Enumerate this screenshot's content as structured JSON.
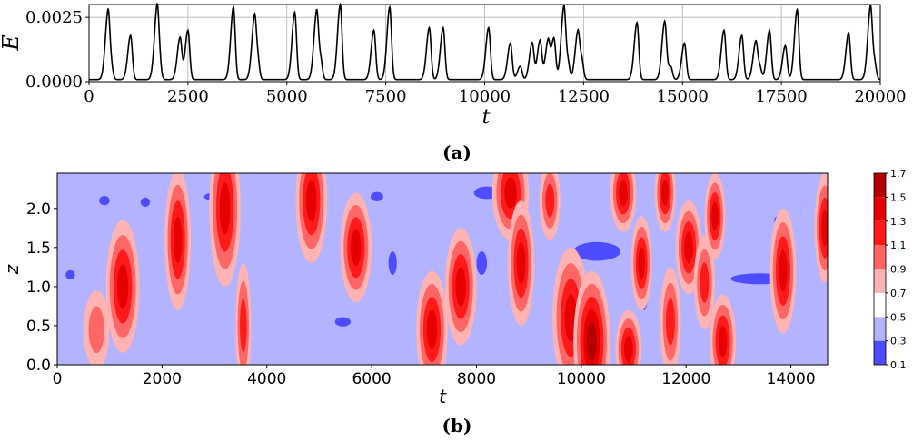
{
  "panel_a": {
    "caption": "(a)",
    "chart_data": {
      "type": "line",
      "ylabel": "E",
      "xlabel": "t",
      "xlim": [
        0,
        20000
      ],
      "ylim": [
        0,
        0.003
      ],
      "xticks": [
        0,
        2500,
        5000,
        7500,
        10000,
        12500,
        15000,
        17500,
        20000
      ],
      "xtick_labels": [
        "0",
        "2500",
        "5000",
        "7500",
        "10000",
        "12500",
        "15000",
        "17500",
        "20000"
      ],
      "yticks": [
        0,
        0.0025
      ],
      "ytick_labels": [
        "0.0000",
        "0.0025"
      ],
      "grid": true,
      "baseline": 8e-05,
      "peaks": [
        {
          "t": 480,
          "e": 0.00255
        },
        {
          "t": 560,
          "e": 0.0006
        },
        {
          "t": 1050,
          "e": 0.0018
        },
        {
          "t": 1720,
          "e": 0.0026
        },
        {
          "t": 1780,
          "e": 0.0007
        },
        {
          "t": 2300,
          "e": 0.0017
        },
        {
          "t": 2500,
          "e": 0.002
        },
        {
          "t": 3650,
          "e": 0.0029
        },
        {
          "t": 4180,
          "e": 0.0022
        },
        {
          "t": 4260,
          "e": 0.0009
        },
        {
          "t": 5200,
          "e": 0.0027
        },
        {
          "t": 5750,
          "e": 0.0025
        },
        {
          "t": 5850,
          "e": 0.0009
        },
        {
          "t": 6350,
          "e": 0.003
        },
        {
          "t": 7200,
          "e": 0.002
        },
        {
          "t": 7600,
          "e": 0.0029
        },
        {
          "t": 8600,
          "e": 0.0021
        },
        {
          "t": 8950,
          "e": 0.0021
        },
        {
          "t": 10100,
          "e": 0.0021
        },
        {
          "t": 10650,
          "e": 0.0015
        },
        {
          "t": 10900,
          "e": 0.0006
        },
        {
          "t": 11200,
          "e": 0.0015
        },
        {
          "t": 11400,
          "e": 0.0016
        },
        {
          "t": 11600,
          "e": 0.0015
        },
        {
          "t": 11750,
          "e": 0.0017
        },
        {
          "t": 12000,
          "e": 0.0027
        },
        {
          "t": 12100,
          "e": 0.0008
        },
        {
          "t": 12350,
          "e": 0.0017
        },
        {
          "t": 12450,
          "e": 0.0009
        },
        {
          "t": 13850,
          "e": 0.0023
        },
        {
          "t": 14550,
          "e": 0.0023
        },
        {
          "t": 14700,
          "e": 0.0006
        },
        {
          "t": 15050,
          "e": 0.0015
        },
        {
          "t": 16050,
          "e": 0.002
        },
        {
          "t": 16500,
          "e": 0.0018
        },
        {
          "t": 16850,
          "e": 0.0014
        },
        {
          "t": 16950,
          "e": 0.0006
        },
        {
          "t": 17200,
          "e": 0.002
        },
        {
          "t": 17600,
          "e": 0.0014
        },
        {
          "t": 17900,
          "e": 0.0028
        },
        {
          "t": 19200,
          "e": 0.0019
        },
        {
          "t": 19750,
          "e": 0.0027
        },
        {
          "t": 19850,
          "e": 0.0008
        }
      ]
    }
  },
  "panel_b": {
    "caption": "(b)",
    "chart_data": {
      "type": "heatmap",
      "xlabel": "t",
      "ylabel": "z",
      "xlim": [
        0,
        14700
      ],
      "ylim": [
        0,
        2.45
      ],
      "xticks": [
        0,
        2000,
        4000,
        6000,
        8000,
        10000,
        12000,
        14000
      ],
      "xtick_labels": [
        "0",
        "2000",
        "4000",
        "6000",
        "8000",
        "10000",
        "12000",
        "14000"
      ],
      "yticks": [
        0,
        0.5,
        1.0,
        1.5,
        2.0
      ],
      "ytick_labels": [
        "0.0",
        "0.5",
        "1.0",
        "1.5",
        "2.0"
      ],
      "colorbar_ticks": [
        "0.1",
        "0.3",
        "0.5",
        "0.7",
        "0.9",
        "1.1",
        "1.3",
        "1.5",
        "1.7"
      ],
      "colorbar_levels": [
        0.1,
        0.3,
        0.5,
        0.7,
        0.9,
        1.1,
        1.3,
        1.5,
        1.7
      ],
      "colorbar_colors": [
        "#0000cc",
        "#4d4dff",
        "#b3b3ff",
        "#ffffff",
        "#ffb3b3",
        "#ff6666",
        "#ff1a1a",
        "#e60000",
        "#b30000",
        "#800000"
      ],
      "background_level": 0.45,
      "low_regions": [
        {
          "t": 700,
          "z": 2.1,
          "dt": 700,
          "dz": 0.6,
          "v": 0.38
        },
        {
          "t": 3300,
          "z": 0.9,
          "dt": 900,
          "dz": 0.9,
          "v": 0.38
        },
        {
          "t": 4100,
          "z": 1.9,
          "dt": 900,
          "dz": 0.5,
          "v": 0.37
        },
        {
          "t": 5200,
          "z": 2.0,
          "dt": 1000,
          "dz": 0.6,
          "v": 0.38
        },
        {
          "t": 7100,
          "z": 1.3,
          "dt": 900,
          "dz": 0.8,
          "v": 0.38
        },
        {
          "t": 8500,
          "z": 2.1,
          "dt": 700,
          "dz": 0.5,
          "v": 0.38
        },
        {
          "t": 9500,
          "z": 1.5,
          "dt": 900,
          "dz": 0.9,
          "v": 0.37
        },
        {
          "t": 10300,
          "z": 0.6,
          "dt": 800,
          "dz": 0.6,
          "v": 0.38
        },
        {
          "t": 12800,
          "z": 1.6,
          "dt": 1000,
          "dz": 0.8,
          "v": 0.38
        },
        {
          "t": 13300,
          "z": 0.6,
          "dt": 900,
          "dz": 0.6,
          "v": 0.38
        },
        {
          "t": 2100,
          "z": 0.2,
          "dt": 500,
          "dz": 0.5,
          "v": 0.38
        },
        {
          "t": 6800,
          "z": 0.2,
          "dt": 800,
          "dz": 0.4,
          "v": 0.37
        }
      ],
      "deep_low": [
        {
          "t": 900,
          "z": 2.1,
          "dt": 100,
          "dz": 0.06,
          "v": 0.2
        },
        {
          "t": 250,
          "z": 1.15,
          "dt": 90,
          "dz": 0.06,
          "v": 0.2
        },
        {
          "t": 1680,
          "z": 2.08,
          "dt": 90,
          "dz": 0.06,
          "v": 0.2
        },
        {
          "t": 3100,
          "z": 2.15,
          "dt": 300,
          "dz": 0.06,
          "v": 0.2
        },
        {
          "t": 5450,
          "z": 0.55,
          "dt": 150,
          "dz": 0.06,
          "v": 0.2
        },
        {
          "t": 6100,
          "z": 2.15,
          "dt": 120,
          "dz": 0.06,
          "v": 0.2
        },
        {
          "t": 6400,
          "z": 1.3,
          "dt": 80,
          "dz": 0.15,
          "v": 0.2
        },
        {
          "t": 8200,
          "z": 2.2,
          "dt": 250,
          "dz": 0.08,
          "v": 0.2
        },
        {
          "t": 10300,
          "z": 1.45,
          "dt": 450,
          "dz": 0.12,
          "v": 0.2
        },
        {
          "t": 11200,
          "z": 1.0,
          "dt": 80,
          "dz": 0.3,
          "v": 0.2
        },
        {
          "t": 13400,
          "z": 1.1,
          "dt": 550,
          "dz": 0.07,
          "v": 0.2
        },
        {
          "t": 13800,
          "z": 1.85,
          "dt": 120,
          "dz": 0.06,
          "v": 0.2
        },
        {
          "t": 9700,
          "z": 0.55,
          "dt": 200,
          "dz": 0.08,
          "v": 0.2
        },
        {
          "t": 8100,
          "z": 1.3,
          "dt": 100,
          "dz": 0.15,
          "v": 0.2
        }
      ],
      "hot_regions": [
        {
          "t": 1250,
          "z": 1.0,
          "dt": 320,
          "dz": 0.85,
          "v": 1.45
        },
        {
          "t": 2300,
          "z": 1.6,
          "dt": 250,
          "dz": 0.9,
          "v": 1.35
        },
        {
          "t": 3200,
          "z": 2.0,
          "dt": 300,
          "dz": 1.0,
          "v": 1.45
        },
        {
          "t": 3550,
          "z": 0.5,
          "dt": 150,
          "dz": 0.8,
          "v": 1.2
        },
        {
          "t": 4850,
          "z": 2.1,
          "dt": 300,
          "dz": 0.8,
          "v": 1.3
        },
        {
          "t": 5700,
          "z": 1.5,
          "dt": 300,
          "dz": 0.7,
          "v": 1.45
        },
        {
          "t": 7150,
          "z": 0.45,
          "dt": 300,
          "dz": 0.75,
          "v": 1.4
        },
        {
          "t": 7700,
          "z": 1.0,
          "dt": 300,
          "dz": 0.75,
          "v": 1.45
        },
        {
          "t": 8650,
          "z": 2.2,
          "dt": 350,
          "dz": 0.6,
          "v": 1.4
        },
        {
          "t": 9800,
          "z": 0.6,
          "dt": 350,
          "dz": 0.9,
          "v": 1.45
        },
        {
          "t": 10200,
          "z": 0.3,
          "dt": 350,
          "dz": 0.9,
          "v": 1.55
        },
        {
          "t": 10800,
          "z": 2.2,
          "dt": 250,
          "dz": 0.5,
          "v": 1.4
        },
        {
          "t": 10900,
          "z": 0.2,
          "dt": 250,
          "dz": 0.5,
          "v": 1.3
        },
        {
          "t": 11150,
          "z": 1.3,
          "dt": 200,
          "dz": 0.6,
          "v": 1.3
        },
        {
          "t": 11600,
          "z": 2.2,
          "dt": 200,
          "dz": 0.5,
          "v": 1.3
        },
        {
          "t": 11700,
          "z": 0.55,
          "dt": 200,
          "dz": 0.7,
          "v": 1.2
        },
        {
          "t": 12050,
          "z": 1.5,
          "dt": 250,
          "dz": 0.6,
          "v": 1.3
        },
        {
          "t": 12350,
          "z": 1.05,
          "dt": 200,
          "dz": 0.6,
          "v": 1.25
        },
        {
          "t": 12550,
          "z": 1.9,
          "dt": 200,
          "dz": 0.55,
          "v": 1.3
        },
        {
          "t": 12700,
          "z": 0.3,
          "dt": 250,
          "dz": 0.6,
          "v": 1.35
        },
        {
          "t": 13850,
          "z": 1.2,
          "dt": 250,
          "dz": 0.8,
          "v": 1.4
        },
        {
          "t": 14650,
          "z": 1.75,
          "dt": 200,
          "dz": 0.7,
          "v": 1.45
        },
        {
          "t": 8850,
          "z": 1.3,
          "dt": 250,
          "dz": 0.8,
          "v": 1.35
        },
        {
          "t": 9400,
          "z": 2.1,
          "dt": 200,
          "dz": 0.5,
          "v": 1.1
        },
        {
          "t": 750,
          "z": 0.45,
          "dt": 250,
          "dz": 0.5,
          "v": 0.9
        }
      ]
    }
  }
}
